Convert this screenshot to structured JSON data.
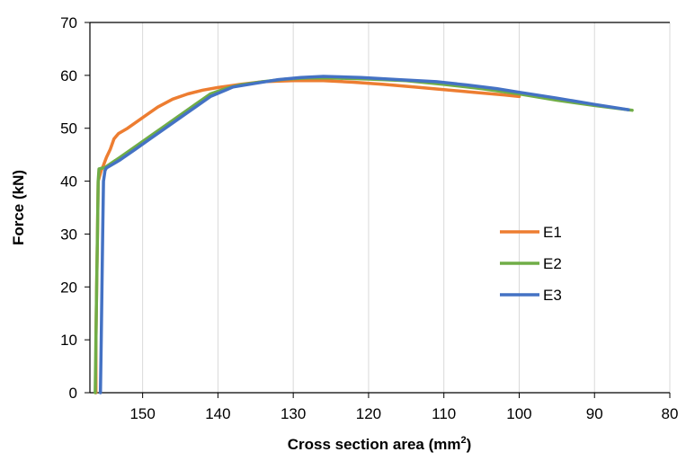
{
  "chart_data": {
    "type": "line",
    "xlabel": "Cross section area (mm",
    "xlabel_sup": "2",
    "xlabel_end": ")",
    "ylabel": "Force (kN)",
    "xlim": [
      157,
      80
    ],
    "ylim": [
      0,
      70
    ],
    "x_reversed": true,
    "x_ticks": [
      150,
      140,
      130,
      120,
      110,
      100,
      90,
      80
    ],
    "y_ticks": [
      0,
      10,
      20,
      30,
      40,
      50,
      60,
      70
    ],
    "grid": {
      "vertical": true,
      "horizontal": false
    },
    "legend": "center-right",
    "colors": {
      "E1": "#ED7D31",
      "E2": "#70AD47",
      "E3": "#4472C4"
    },
    "series": [
      {
        "name": "E1",
        "x": [
          156.2,
          156.2,
          156.1,
          156.0,
          155.9,
          155.5,
          155.2,
          154.8,
          154.3,
          153.8,
          153.2,
          152.0,
          150.0,
          148.0,
          146.0,
          144.0,
          142.0,
          140.0,
          137.0,
          134.0,
          130.0,
          126.0,
          122.0,
          118.0,
          114.0,
          110.0,
          106.0,
          102.0,
          100.0
        ],
        "y": [
          0,
          10,
          20,
          30,
          40,
          42,
          43,
          44.5,
          46,
          48,
          49,
          50,
          52,
          54,
          55.5,
          56.5,
          57.2,
          57.7,
          58.3,
          58.8,
          59.0,
          59.0,
          58.7,
          58.3,
          57.8,
          57.3,
          56.8,
          56.3,
          56.0
        ]
      },
      {
        "name": "E2",
        "x": [
          156.3,
          156.2,
          156.1,
          156.0,
          155.9,
          155.8,
          155.0,
          153.0,
          151.0,
          149.0,
          147.0,
          145.0,
          143.0,
          141.0,
          139.0,
          137.0,
          134.0,
          131.0,
          128.0,
          125.0,
          120.0,
          115.0,
          110.0,
          105.0,
          100.0,
          95.0,
          90.0,
          85.0
        ],
        "y": [
          0,
          10,
          20,
          30,
          40,
          42.3,
          42.6,
          44.5,
          46.5,
          48.5,
          50.5,
          52.5,
          54.5,
          56.5,
          57.5,
          58.2,
          58.8,
          59.3,
          59.5,
          59.5,
          59.3,
          59.0,
          58.3,
          57.5,
          56.5,
          55.3,
          54.3,
          53.4
        ]
      },
      {
        "name": "E3",
        "x": [
          155.6,
          155.5,
          155.4,
          155.3,
          155.2,
          155.0,
          154.8,
          153.0,
          151.0,
          149.0,
          147.0,
          145.0,
          143.0,
          141.0,
          138.0,
          135.0,
          132.0,
          129.0,
          126.0,
          121.0,
          116.0,
          111.0,
          107.0,
          103.0,
          100.0,
          95.0,
          90.0,
          85.5
        ],
        "y": [
          0,
          10,
          20,
          30,
          40,
          42,
          42.5,
          44,
          46,
          48,
          50,
          52,
          54,
          56,
          57.8,
          58.5,
          59.2,
          59.6,
          59.8,
          59.6,
          59.2,
          58.8,
          58.2,
          57.5,
          56.8,
          55.7,
          54.5,
          53.5
        ]
      }
    ]
  }
}
